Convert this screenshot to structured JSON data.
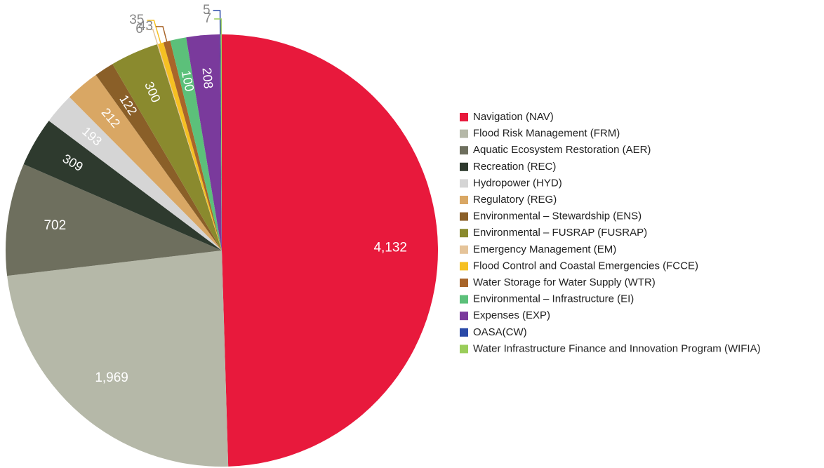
{
  "chart_data": {
    "type": "pie",
    "categories": [
      "Navigation (NAV)",
      "Flood Risk Management (FRM)",
      "Aquatic Ecosystem Restoration (AER)",
      "Recreation (REC)",
      "Hydropower (HYD)",
      "Regulatory (REG)",
      "Environmental – Stewardship (ENS)",
      "Environmental – FUSRAP (FUSRAP)",
      "Emergency Management (EM)",
      "Flood Control and Coastal Emergencies (FCCE)",
      "Water Storage for Water Supply (WTR)",
      "Environmental – Infrastructure (EI)",
      "Expenses (EXP)",
      "OASA(CW)",
      "Water Infrastructure Finance and Innovation Program (WIFIA)"
    ],
    "values": [
      4132,
      1969,
      702,
      309,
      193,
      212,
      122,
      300,
      6,
      35,
      43,
      100,
      208,
      5,
      7
    ],
    "value_labels": [
      "4,132",
      "1,969",
      "702",
      "309",
      "193",
      "212",
      "122",
      "300",
      "6",
      "35",
      "43",
      "100",
      "208",
      "5",
      "7"
    ],
    "colors": [
      "#e8193c",
      "#b5b8a8",
      "#6e6f5e",
      "#2e3a2e",
      "#d5d5d5",
      "#d9a764",
      "#8a5f28",
      "#8a8a2e",
      "#e5c49a",
      "#f5c022",
      "#a8652a",
      "#5cc07a",
      "#7a3a9c",
      "#2a4aa8",
      "#9acd5a"
    ],
    "legend": "right"
  }
}
